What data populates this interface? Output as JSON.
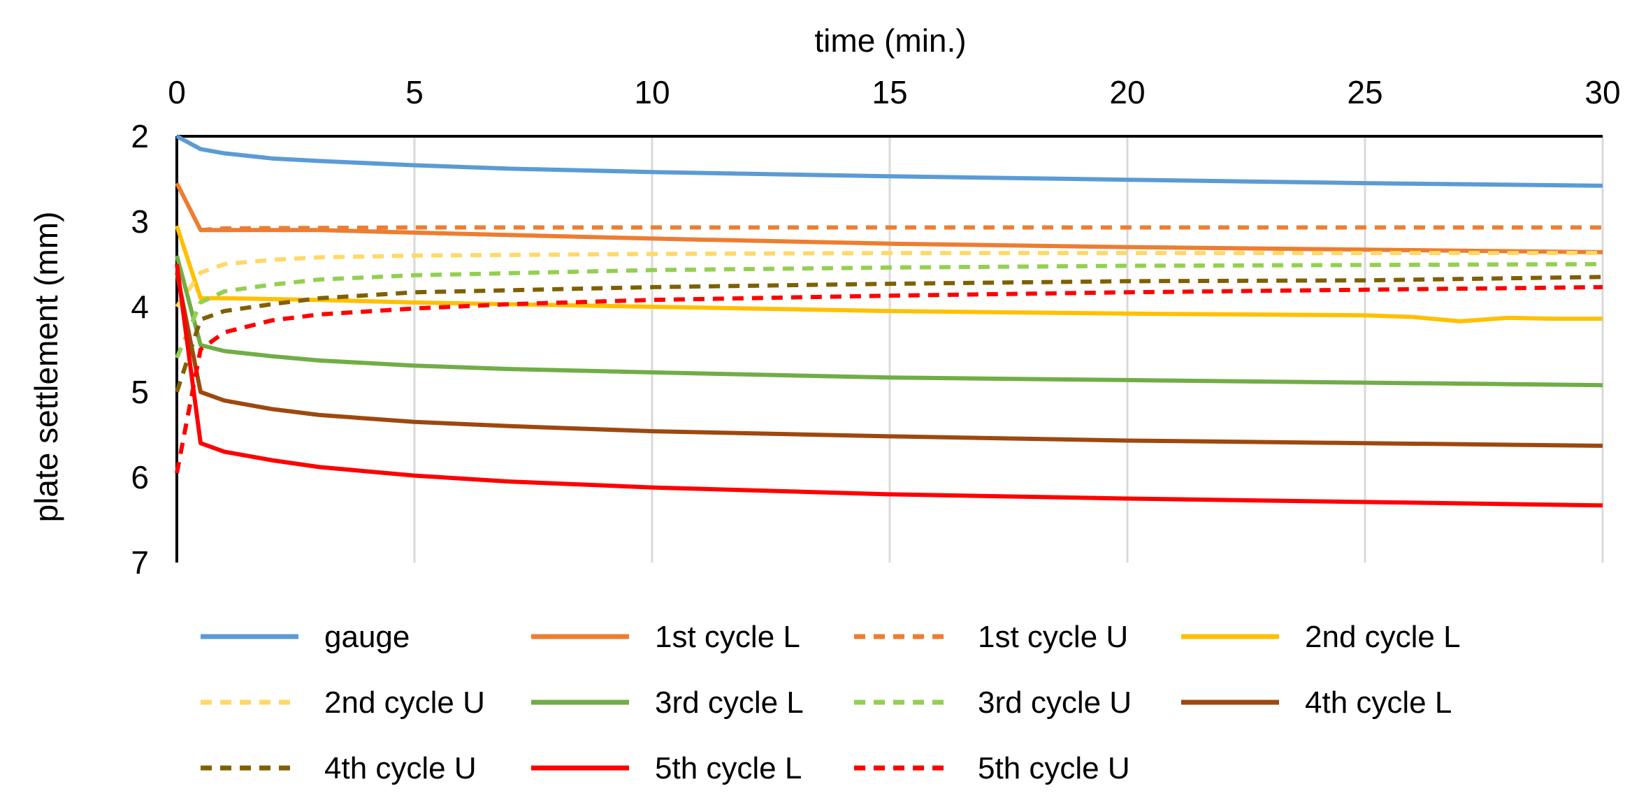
{
  "chart_data": {
    "type": "line",
    "title": "",
    "xlabel": "time (min.)",
    "ylabel": "plate settlement (mm)",
    "xlim": [
      0,
      30
    ],
    "ylim": [
      2,
      7
    ],
    "y_inverted": true,
    "x_axis_position": "top",
    "x_ticks": [
      0,
      5,
      10,
      15,
      20,
      25,
      30
    ],
    "y_ticks": [
      2,
      3,
      4,
      5,
      6,
      7
    ],
    "grid": "vertical",
    "legend_position": "bottom",
    "series": [
      {
        "name": "gauge",
        "color": "#5B9BD5",
        "dash": "solid",
        "x": [
          0,
          0.5,
          1,
          2,
          3,
          5,
          7,
          10,
          15,
          20,
          25,
          30
        ],
        "y": [
          2.0,
          2.15,
          2.2,
          2.26,
          2.29,
          2.34,
          2.38,
          2.42,
          2.47,
          2.51,
          2.55,
          2.58
        ]
      },
      {
        "name": "1st cycle L",
        "color": "#ED7D31",
        "dash": "solid",
        "x": [
          0,
          0.5,
          1,
          3,
          5,
          10,
          15,
          20,
          25,
          30
        ],
        "y": [
          2.55,
          3.1,
          3.1,
          3.1,
          3.13,
          3.2,
          3.26,
          3.3,
          3.33,
          3.36
        ]
      },
      {
        "name": "1st cycle U",
        "color": "#ED7D31",
        "dash": "dashed",
        "x": [
          0.5,
          1,
          5,
          10,
          15,
          20,
          25,
          30
        ],
        "y": [
          3.1,
          3.08,
          3.07,
          3.07,
          3.07,
          3.07,
          3.07,
          3.07
        ]
      },
      {
        "name": "2nd cycle L",
        "color": "#FFC000",
        "dash": "solid",
        "x": [
          0,
          0.5,
          1,
          3,
          5,
          10,
          15,
          20,
          25,
          26,
          27,
          28,
          29,
          30
        ],
        "y": [
          3.05,
          3.9,
          3.9,
          3.92,
          3.95,
          4.0,
          4.05,
          4.08,
          4.1,
          4.12,
          4.17,
          4.13,
          4.14,
          4.14
        ]
      },
      {
        "name": "2nd cycle U",
        "color": "#FFD966",
        "dash": "dashed",
        "x": [
          0,
          0.5,
          1,
          2,
          3,
          5,
          10,
          15,
          20,
          25,
          30
        ],
        "y": [
          4.0,
          3.6,
          3.5,
          3.45,
          3.42,
          3.4,
          3.38,
          3.37,
          3.37,
          3.37,
          3.37
        ]
      },
      {
        "name": "3rd cycle L",
        "color": "#70AD47",
        "dash": "solid",
        "x": [
          0,
          0.5,
          1,
          2,
          3,
          5,
          7,
          10,
          15,
          20,
          25,
          30
        ],
        "y": [
          3.4,
          4.45,
          4.52,
          4.58,
          4.63,
          4.69,
          4.73,
          4.77,
          4.83,
          4.86,
          4.89,
          4.92
        ]
      },
      {
        "name": "3rd cycle U",
        "color": "#92D050",
        "dash": "dashed",
        "x": [
          0,
          0.5,
          1,
          2,
          3,
          5,
          10,
          15,
          20,
          25,
          30
        ],
        "y": [
          4.6,
          3.95,
          3.82,
          3.74,
          3.68,
          3.63,
          3.57,
          3.54,
          3.52,
          3.51,
          3.5
        ]
      },
      {
        "name": "4th cycle L",
        "color": "#9E480E",
        "dash": "solid",
        "x": [
          0,
          0.5,
          1,
          2,
          3,
          5,
          7,
          10,
          15,
          20,
          25,
          30
        ],
        "y": [
          3.6,
          5.0,
          5.1,
          5.2,
          5.27,
          5.35,
          5.4,
          5.46,
          5.52,
          5.57,
          5.6,
          5.63
        ]
      },
      {
        "name": "4th cycle U",
        "color": "#7F6000",
        "dash": "dashed",
        "x": [
          0,
          0.5,
          1,
          2,
          3,
          5,
          10,
          15,
          20,
          25,
          30
        ],
        "y": [
          5.0,
          4.15,
          4.05,
          3.97,
          3.9,
          3.83,
          3.77,
          3.73,
          3.7,
          3.69,
          3.65
        ]
      },
      {
        "name": "5th cycle L",
        "color": "#FF0000",
        "dash": "solid",
        "x": [
          0,
          0.5,
          1,
          2,
          3,
          5,
          7,
          10,
          15,
          20,
          25,
          30
        ],
        "y": [
          3.5,
          5.6,
          5.7,
          5.8,
          5.88,
          5.98,
          6.05,
          6.12,
          6.2,
          6.25,
          6.29,
          6.33
        ]
      },
      {
        "name": "5th cycle U",
        "color": "#FF0000",
        "dash": "dashed",
        "x": [
          0,
          0.5,
          1,
          2,
          3,
          5,
          7,
          10,
          15,
          20,
          25,
          30
        ],
        "y": [
          5.95,
          4.5,
          4.3,
          4.16,
          4.09,
          4.02,
          3.97,
          3.92,
          3.87,
          3.83,
          3.8,
          3.77
        ]
      }
    ]
  }
}
